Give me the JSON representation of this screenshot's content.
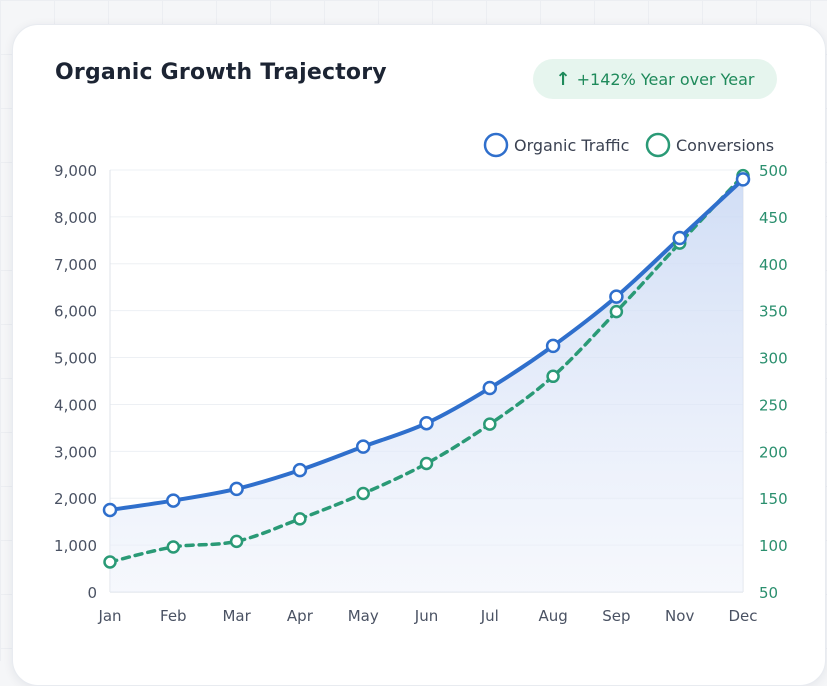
{
  "header": {
    "title": "Organic Growth Trajectory",
    "badge_icon": "arrow-up-icon",
    "badge_text": "+142% Year over Year"
  },
  "colors": {
    "traffic": "#2f6fcc",
    "conversions": "#2a9a76",
    "badge_bg": "#e6f5ee",
    "badge_text": "#1f8a5b"
  },
  "chart_data": {
    "type": "line",
    "title": "Organic Growth Trajectory",
    "categories": [
      "Jan",
      "Feb",
      "Mar",
      "Apr",
      "May",
      "Jun",
      "Jul",
      "Aug",
      "Sep",
      "Nov",
      "Dec"
    ],
    "series": [
      {
        "name": "Organic Traffic",
        "axis": "left",
        "style": "solid",
        "values": [
          1750,
          1950,
          2200,
          2600,
          3100,
          3600,
          4350,
          5250,
          6300,
          7550,
          8800
        ]
      },
      {
        "name": "Conversions",
        "axis": "right",
        "style": "dashed",
        "values": [
          82,
          98,
          104,
          128,
          155,
          187,
          229,
          280,
          349,
          422,
          494
        ]
      }
    ],
    "y_left": {
      "ylim": [
        0,
        9000
      ],
      "ticks": [
        0,
        1000,
        2000,
        3000,
        4000,
        5000,
        6000,
        7000,
        8000,
        9000
      ],
      "tick_labels": [
        "0",
        "1,000",
        "2,000",
        "3,000",
        "4,000",
        "5,000",
        "6,000",
        "7,000",
        "8,000",
        "9,000"
      ]
    },
    "y_right": {
      "ylim": [
        50,
        500
      ],
      "ticks": [
        50,
        100,
        150,
        200,
        250,
        300,
        350,
        400,
        450,
        500
      ],
      "tick_labels": [
        "50",
        "100",
        "150",
        "200",
        "250",
        "300",
        "350",
        "400",
        "450",
        "500"
      ]
    },
    "legend": [
      "Organic Traffic",
      "Conversions"
    ],
    "legend_position": "top-right",
    "grid": true
  }
}
